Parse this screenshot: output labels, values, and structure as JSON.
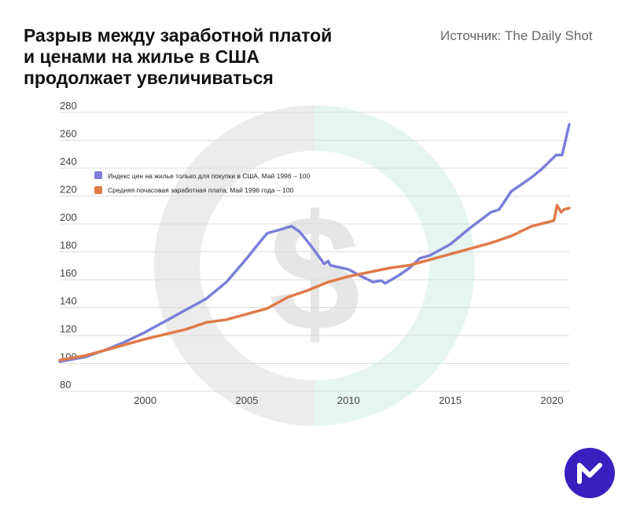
{
  "header": {
    "title_lines": [
      "Разрыв между заработной платой",
      "и ценами на жилье в США",
      "продолжает увеличиваться"
    ],
    "source": "Источник: The Daily Shot"
  },
  "chart_data": {
    "type": "line",
    "title": "Разрыв между заработной платой и ценами на жилье в США продолжает увеличиваться",
    "xlabel": "",
    "ylabel": "",
    "xlim": [
      1995.8,
      2020.85
    ],
    "ylim": [
      80,
      280
    ],
    "yticks": [
      80,
      100,
      120,
      140,
      160,
      180,
      200,
      220,
      240,
      260,
      280
    ],
    "xticks": [
      2000,
      2005,
      2010,
      2015,
      2020
    ],
    "grid": true,
    "legend_position": "top-left",
    "series": [
      {
        "name": "Индекс цен на жилье только для покупки в США, Май 1996 – 100",
        "color": "#7b7fd9",
        "x": [
          1995.8,
          1997,
          1998,
          1999,
          2000,
          2001,
          2002,
          2003,
          2004,
          2005,
          2005.6,
          2006,
          2006.5,
          2007.2,
          2007.6,
          2008.2,
          2008.8,
          2009,
          2009.1,
          2010,
          2010.5,
          2011.2,
          2011.6,
          2011.8,
          2012.5,
          2013,
          2013.5,
          2014,
          2015,
          2016,
          2017,
          2017.4,
          2018,
          2019,
          2019.5,
          2020.2,
          2020.5,
          2020.85
        ],
        "values": [
          98,
          101,
          106,
          112,
          119,
          127,
          135,
          143,
          155,
          172,
          183,
          190,
          192,
          195,
          191,
          180,
          168,
          170,
          167,
          164,
          160,
          155,
          156,
          154,
          160,
          165,
          172,
          174,
          182,
          194,
          205,
          207,
          220,
          230,
          236,
          246,
          246,
          268
        ]
      },
      {
        "name": "Средняя почасовая заработная плата, Май 1996 года – 100",
        "color": "#e07a4a",
        "x": [
          1995.8,
          1997,
          1998,
          2000,
          2002,
          2003,
          2004,
          2005,
          2006,
          2007,
          2008,
          2009,
          2010,
          2011,
          2012,
          2013,
          2014,
          2015,
          2016,
          2017,
          2018,
          2019,
          2020.1,
          2020.25,
          2020.45,
          2020.6,
          2020.85
        ],
        "values": [
          99,
          102,
          106,
          114,
          121,
          126,
          128,
          132,
          136,
          144,
          149,
          155,
          159,
          162,
          165,
          167,
          171,
          175,
          179,
          183,
          188,
          195,
          199,
          210,
          205,
          207,
          208
        ]
      }
    ]
  },
  "colors": {
    "logo": "#3a1fc0",
    "grid": "#dcdcdc"
  }
}
